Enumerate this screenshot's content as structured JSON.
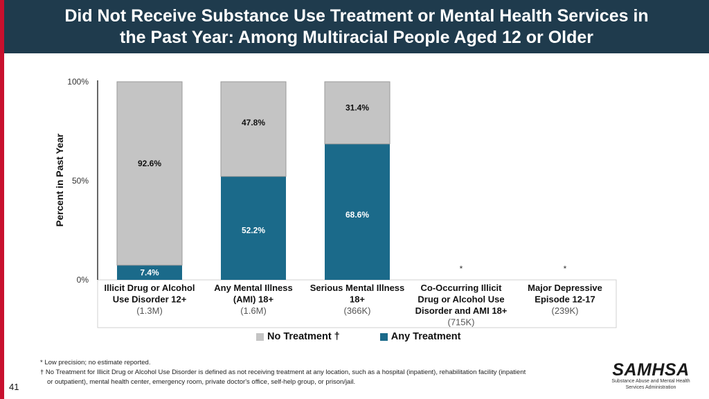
{
  "title_lines": [
    "Did Not Receive Substance Use Treatment or Mental Health Services in",
    "the Past Year: Among Multiracial People Aged 12 or Older"
  ],
  "chart_data": {
    "type": "bar",
    "stacked": true,
    "title": "Did Not Receive Substance Use Treatment or Mental Health Services in the Past Year: Among Multiracial People Aged 12 or Older",
    "ylabel": "Percent in Past Year",
    "ylim": [
      0,
      100
    ],
    "yticks": [
      "0%",
      "50%",
      "100%"
    ],
    "ytick_values": [
      0,
      50,
      100
    ],
    "categories": [
      {
        "lines": [
          "Illicit Drug or Alcohol",
          "Use Disorder 12+"
        ],
        "n": "(1.3M)",
        "has_data": true
      },
      {
        "lines": [
          "Any Mental Illness",
          "(AMI) 18+"
        ],
        "n": "(1.6M)",
        "has_data": true
      },
      {
        "lines": [
          "Serious Mental Illness",
          "18+"
        ],
        "n": "(366K)",
        "has_data": true
      },
      {
        "lines": [
          "Co-Occurring Illicit",
          "Drug or Alcohol Use",
          "Disorder and AMI 18+"
        ],
        "n": "(715K)",
        "has_data": false,
        "marker": "*"
      },
      {
        "lines": [
          "Major Depressive",
          "Episode 12-17"
        ],
        "n": "(239K)",
        "has_data": false,
        "marker": "*"
      }
    ],
    "series": [
      {
        "name": "Any Treatment",
        "color": "#1b6a8a",
        "values": [
          7.4,
          52.2,
          68.6,
          null,
          null
        ],
        "labels": [
          "7.4%",
          "52.2%",
          "68.6%",
          "",
          ""
        ],
        "label_color": "#ffffff"
      },
      {
        "name": "No Treatment †",
        "color": "#c4c4c4",
        "values": [
          92.6,
          47.8,
          31.4,
          null,
          null
        ],
        "labels": [
          "92.6%",
          "47.8%",
          "31.4%",
          "",
          ""
        ],
        "label_color": "#111111"
      }
    ],
    "legend": {
      "position": "bottom",
      "order": [
        "No Treatment †",
        "Any Treatment"
      ]
    }
  },
  "legend_items": [
    {
      "label": "No Treatment †",
      "color": "#c4c4c4"
    },
    {
      "label": "Any Treatment",
      "color": "#1b6a8a"
    }
  ],
  "notes": [
    "* Low precision; no estimate reported.",
    "† No Treatment for Illicit Drug or Alcohol Use Disorder is defined as not receiving treatment at any location, such as a hospital (inpatient), rehabilitation facility (inpatient",
    "or outpatient), mental health center, emergency room, private doctor's office, self-help group, or prison/jail."
  ],
  "page_number": "41",
  "logo": {
    "word": "SAMHSA",
    "sub_lines": [
      "Substance Abuse and Mental Health",
      "Services Administration"
    ]
  },
  "colors": {
    "title_band": "#1f3b4d",
    "accent": "#c8102e"
  }
}
